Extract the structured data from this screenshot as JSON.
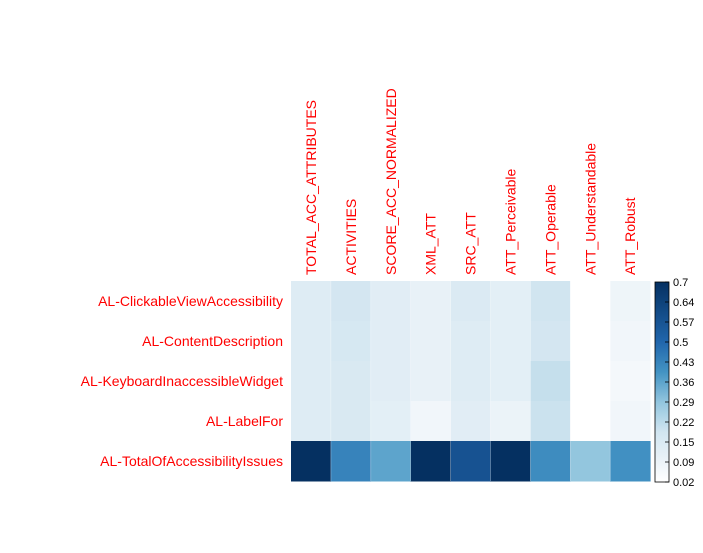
{
  "chart_data": {
    "type": "heatmap",
    "title": "",
    "columns": [
      "TOTAL_ACC_ATTRIBUTES",
      "ACTIVITIES",
      "SCORE_ACC_NORMALIZED",
      "XML_ATT",
      "SRC_ATT",
      "ATT_Perceivable",
      "ATT_Operable",
      "ATT_Understandable",
      "ATT_Robust"
    ],
    "rows": [
      "AL-ClickableViewAccessibility",
      "AL-ContentDescription",
      "AL-KeyboardInaccessibleWidget",
      "AL-LabelFor",
      "AL-TotalOfAccessibilityIssues"
    ],
    "values": [
      [
        0.14,
        0.18,
        0.13,
        0.1,
        0.15,
        0.12,
        0.19,
        0.02,
        0.08
      ],
      [
        0.14,
        0.17,
        0.13,
        0.1,
        0.14,
        0.12,
        0.18,
        0.02,
        0.07
      ],
      [
        0.14,
        0.16,
        0.13,
        0.1,
        0.14,
        0.12,
        0.21,
        0.02,
        0.06
      ],
      [
        0.14,
        0.16,
        0.12,
        0.07,
        0.13,
        0.09,
        0.2,
        0.02,
        0.07
      ],
      [
        0.7,
        0.43,
        0.36,
        0.7,
        0.57,
        0.7,
        0.41,
        0.29,
        0.4
      ]
    ],
    "colorbar": {
      "range": [
        0.02,
        0.7
      ],
      "ticks": [
        "0.7",
        "0.64",
        "0.57",
        "0.5",
        "0.43",
        "0.36",
        "0.29",
        "0.22",
        "0.15",
        "0.09",
        "0.02"
      ]
    },
    "colors": {
      "low": "#ffffff",
      "high": "#053061",
      "label": "#ff0000"
    }
  }
}
